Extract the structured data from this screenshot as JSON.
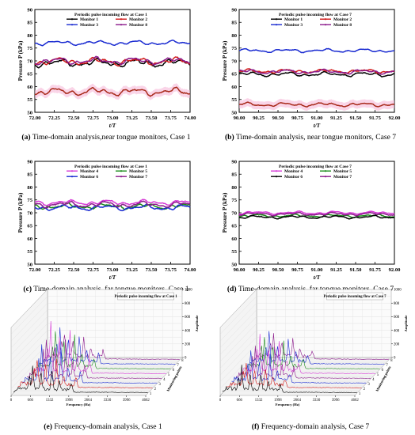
{
  "chart_data": [
    {
      "id": "a",
      "type": "line",
      "legend_title": "Periodic pulse incoming flow at Case 1",
      "xlabel": "t/T",
      "ylabel": "Pressure P (kPa)",
      "xlim": [
        72.0,
        74.0
      ],
      "ylim": [
        50,
        90
      ],
      "xticks": [
        "72.00",
        "72.25",
        "72.50",
        "72.75",
        "73.00",
        "73.25",
        "73.50",
        "73.75",
        "74.00"
      ],
      "yticks": [
        "50",
        "55",
        "60",
        "65",
        "70",
        "75",
        "80",
        "85",
        "90"
      ],
      "series": [
        {
          "name": "Monitor 1",
          "color": "#000000",
          "base": 69.2,
          "amp": 1.6
        },
        {
          "name": "Monitor 2",
          "color": "#d11a1a",
          "base": 69.8,
          "amp": 1.5
        },
        {
          "name": "Monitor 3",
          "color": "#1a2bd1",
          "base": 77.0,
          "amp": 0.9
        },
        {
          "name": "Monitor 8",
          "color": "#8b1a8b",
          "base": 70.0,
          "amp": 1.4
        },
        {
          "name": "",
          "color": "#a82a1a",
          "base": 58.0,
          "amp": 1.5,
          "band": "#f5b3d6"
        }
      ],
      "caption_label": "(a)",
      "caption": "Time-domain analysis,near tongue monitors, Case 1"
    },
    {
      "id": "b",
      "type": "line",
      "legend_title": "Periodic pulse incoming flow at Case 7",
      "xlabel": "t/T",
      "ylabel": "Pressure P (kPa)",
      "xlim": [
        90.0,
        92.0
      ],
      "ylim": [
        50,
        90
      ],
      "xticks": [
        "90.00",
        "90.25",
        "90.50",
        "90.75",
        "91.00",
        "91.25",
        "91.50",
        "91.75",
        "92.00"
      ],
      "yticks": [
        "50",
        "55",
        "60",
        "65",
        "70",
        "75",
        "80",
        "85",
        "90"
      ],
      "series": [
        {
          "name": "Monitor 1",
          "color": "#000000",
          "base": 64.8,
          "amp": 0.9
        },
        {
          "name": "Monitor 2",
          "color": "#d11a1a",
          "base": 66.0,
          "amp": 0.8
        },
        {
          "name": "Monitor 3",
          "color": "#1a2bd1",
          "base": 74.0,
          "amp": 0.7
        },
        {
          "name": "Monitor 8",
          "color": "#8b1a8b",
          "base": 65.8,
          "amp": 0.9
        },
        {
          "name": "",
          "color": "#a82a1a",
          "base": 53.0,
          "amp": 0.8,
          "band": "#f5b3d6"
        }
      ],
      "caption_label": "(b)",
      "caption": "Time-domain analysis, near tongue monitors, Case 7"
    },
    {
      "id": "c",
      "type": "line",
      "legend_title": "Periodic pulse incoming flow at Case 1",
      "xlabel": "t/T",
      "ylabel": "Pressure P (kPa)",
      "xlim": [
        72.0,
        74.0
      ],
      "ylim": [
        50,
        90
      ],
      "xticks": [
        "72.00",
        "72.25",
        "72.50",
        "72.75",
        "73.00",
        "73.25",
        "73.50",
        "73.75",
        "74.00"
      ],
      "yticks": [
        "50",
        "55",
        "60",
        "65",
        "70",
        "75",
        "80",
        "85",
        "90"
      ],
      "series": [
        {
          "name": "Monitor 4",
          "color": "#d63ad6",
          "base": 74.0,
          "amp": 1.0
        },
        {
          "name": "Monitor 5",
          "color": "#1a8a1a",
          "base": 72.5,
          "amp": 1.1
        },
        {
          "name": "Monitor 6",
          "color": "#1a2bd1",
          "base": 72.0,
          "amp": 1.1
        },
        {
          "name": "Monitor 7",
          "color": "#8b1a8b",
          "base": 73.2,
          "amp": 1.2
        }
      ],
      "caption_label": "(c)",
      "caption": "Time-domain analysis, far tongue monitors, Case 1"
    },
    {
      "id": "d",
      "type": "line",
      "legend_title": "Periodic pulse incoming flow at Case 7",
      "xlabel": "t/T",
      "ylabel": "Pressure P (kPa)",
      "xlim": [
        90.0,
        92.0
      ],
      "ylim": [
        50,
        90
      ],
      "xticks": [
        "90.00",
        "90.25",
        "90.50",
        "90.75",
        "91.00",
        "91.25",
        "91.50",
        "91.75",
        "92.00"
      ],
      "yticks": [
        "50",
        "55",
        "60",
        "65",
        "70",
        "75",
        "80",
        "85",
        "90"
      ],
      "series": [
        {
          "name": "Monitor 4",
          "color": "#d63ad6",
          "base": 70.0,
          "amp": 0.6
        },
        {
          "name": "Monitor 5",
          "color": "#1a8a1a",
          "base": 68.8,
          "amp": 0.6
        },
        {
          "name": "Monitor 6",
          "color": "#000000",
          "base": 68.3,
          "amp": 0.6
        },
        {
          "name": "Monitor 7",
          "color": "#8b1a8b",
          "base": 69.5,
          "amp": 0.6
        }
      ],
      "caption_label": "(d)",
      "caption": "Time-domain analysis, far tongue monitors, Case 7"
    },
    {
      "id": "e",
      "type": "area",
      "subtype": "3d-waterfall-spectrum",
      "legend_title": "Periodic pulse incoming flow at Case 1",
      "xlabel": "Frequency (Hz)",
      "zlabel": "Amplitude",
      "ylabel": "Monitoring points",
      "xticks": [
        "0",
        "666",
        "1332",
        "1998",
        "2664",
        "3330",
        "3996",
        "4662"
      ],
      "zticks": [
        "0",
        "200",
        "400",
        "600",
        "800",
        "1000"
      ],
      "monitors": 8,
      "peak_amplitudes": [
        360,
        420,
        520,
        600,
        700,
        560,
        460,
        380
      ],
      "caption_label": "(e)",
      "caption": "Frequency-domain analysis, Case 1"
    },
    {
      "id": "f",
      "type": "area",
      "subtype": "3d-waterfall-spectrum",
      "legend_title": "Periodic pulse incoming flow at Case 7",
      "xlabel": "Frequency (Hz)",
      "zlabel": "Amplitude",
      "ylabel": "Monitoring points",
      "xticks": [
        "0",
        "666",
        "1332",
        "1998",
        "2664",
        "3330",
        "3996",
        "4662"
      ],
      "zticks": [
        "0",
        "200",
        "400",
        "600",
        "800",
        "1000"
      ],
      "monitors": 8,
      "peak_amplitudes": [
        300,
        340,
        400,
        450,
        480,
        420,
        380,
        320
      ],
      "caption_label": "(f)",
      "caption": "Frequency-domain analysis, Case 7"
    }
  ]
}
